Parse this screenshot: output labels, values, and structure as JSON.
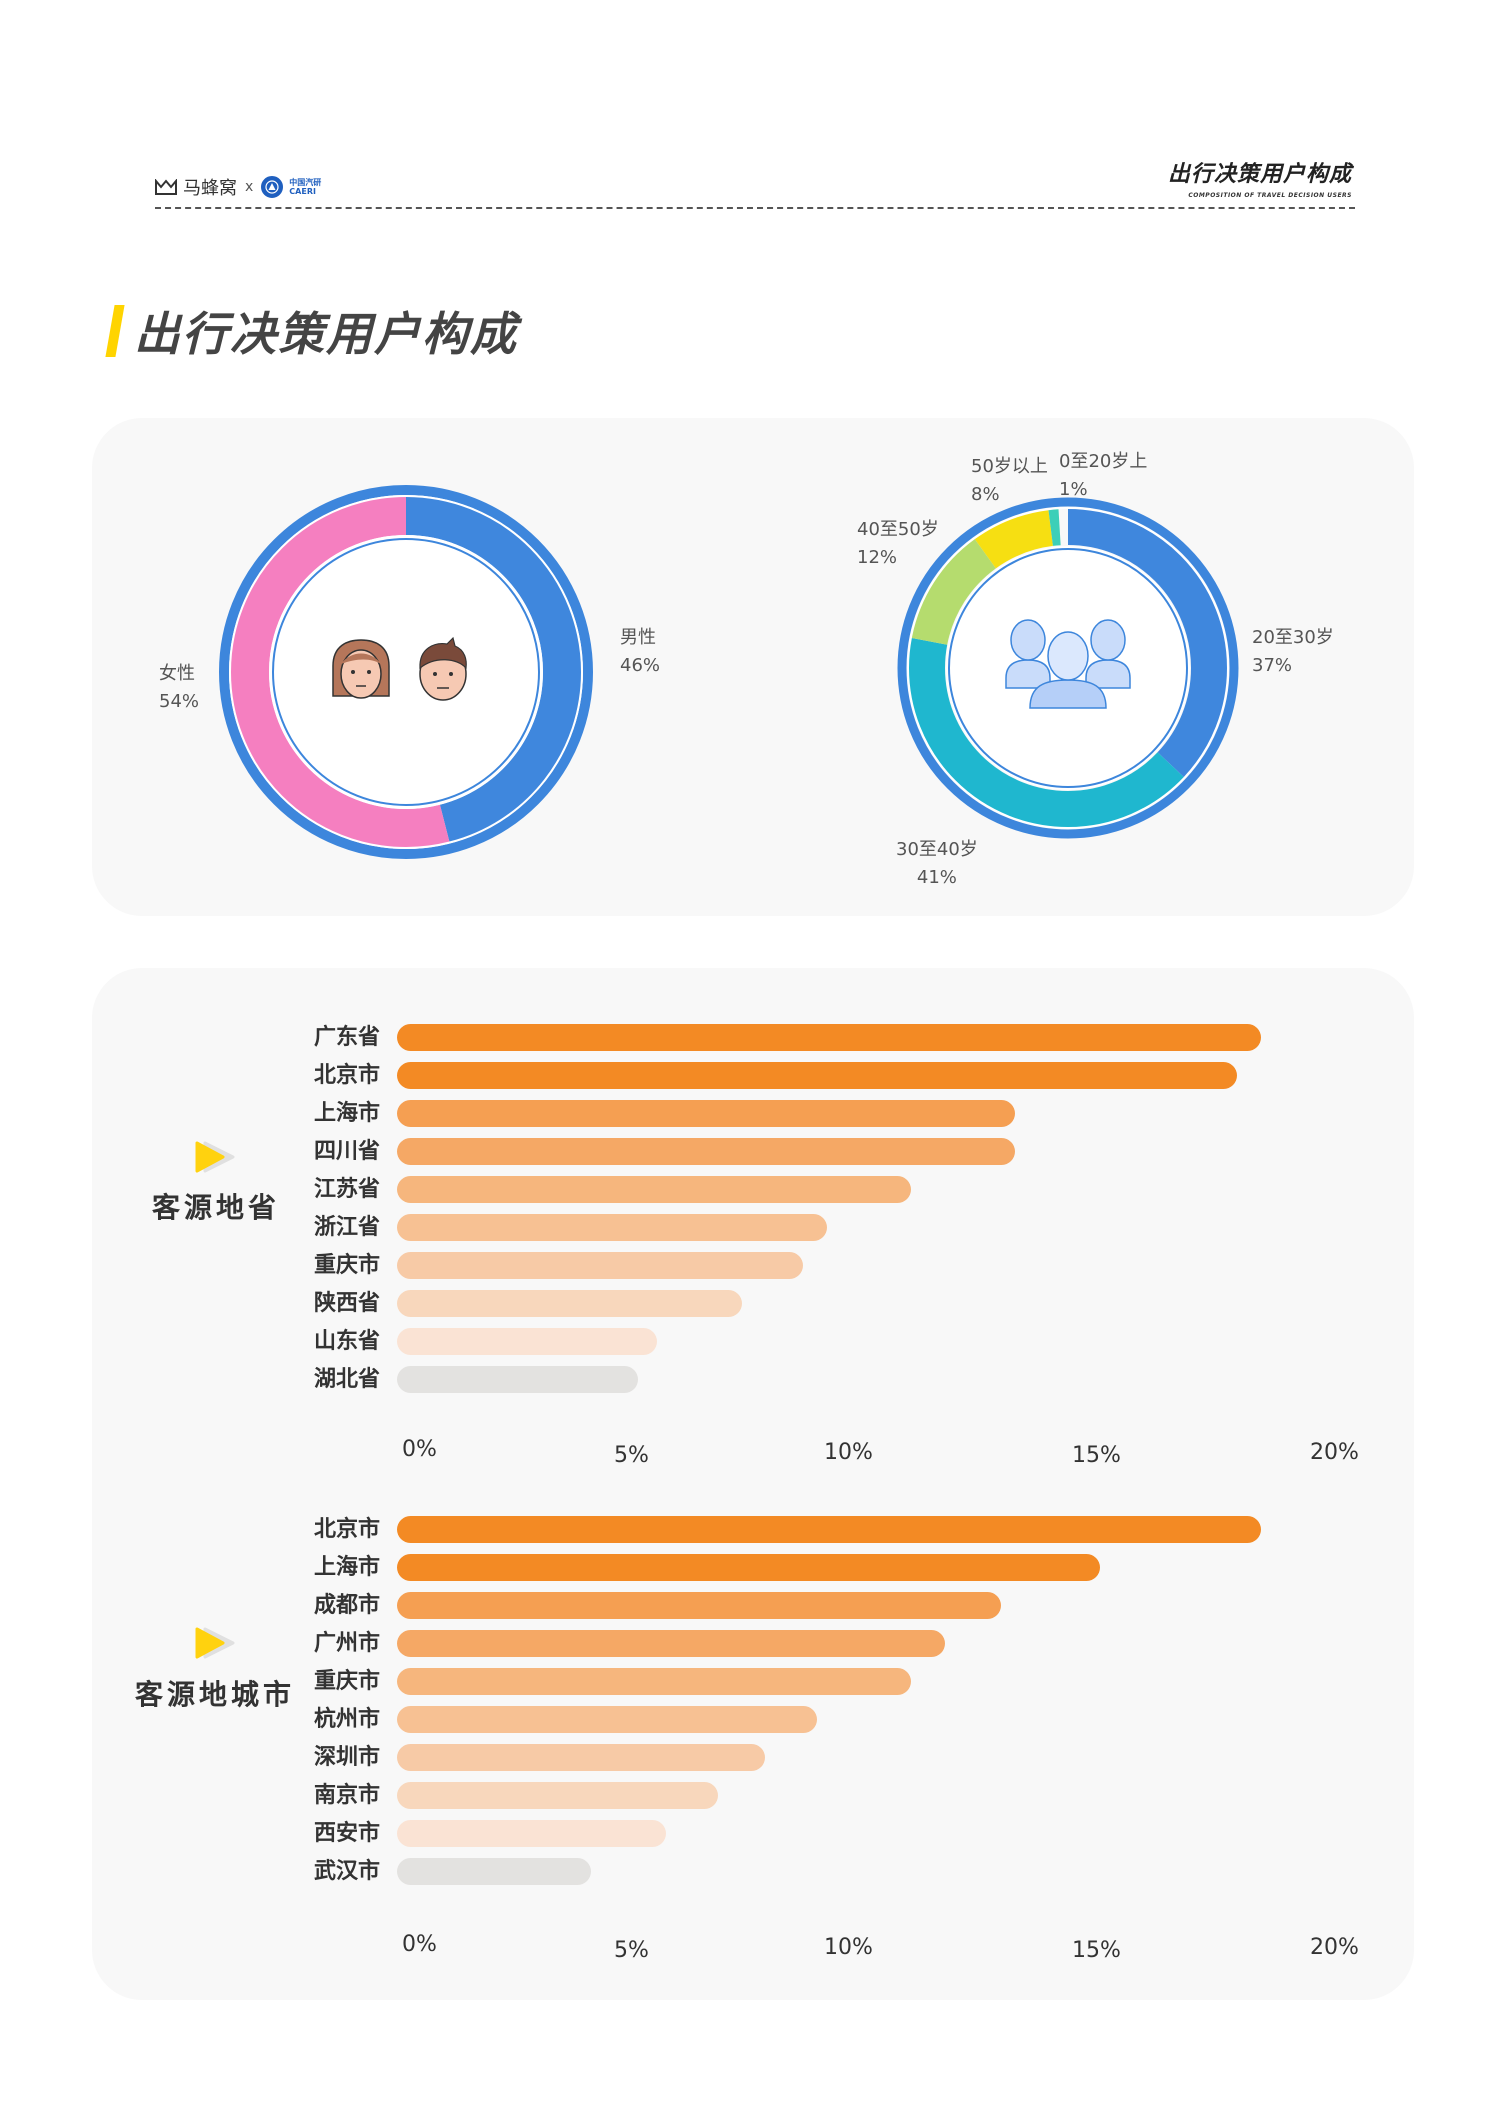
{
  "header": {
    "brand": "马蜂窝",
    "separator": "x",
    "partner_cn": "中国汽研",
    "partner_en": "CAERI",
    "section_title": "出行决策用户构成",
    "section_subtitle": "COMPOSITION OF TRAVEL DECISION USERS"
  },
  "page_title": "出行决策用户构成",
  "colors": {
    "accent_yellow": "#ffd400",
    "male_blue": "#3f87dd",
    "female_pink": "#f57fc0",
    "ring_blue": "#3d86dc",
    "bar_colors": [
      "#f38a24",
      "#f38a24",
      "#f59f52",
      "#f5a865",
      "#f6b67d",
      "#f7c193",
      "#f7caa6",
      "#f8d7bc",
      "#fae3d4",
      "#e3e2e0"
    ],
    "card_bg": "#f8f8f8"
  },
  "chart_data": [
    {
      "type": "pie",
      "title": "性别",
      "categories": [
        "男性",
        "女性"
      ],
      "values": [
        46,
        54
      ],
      "labels": [
        {
          "name": "男性",
          "value": "46%"
        },
        {
          "name": "女性",
          "value": "54%"
        }
      ],
      "colors": [
        "#3f87dd",
        "#f57fc0"
      ],
      "center_icon": "couple-faces-icon"
    },
    {
      "type": "pie",
      "title": "年龄",
      "categories": [
        "20至30岁",
        "30至40岁",
        "40至50岁",
        "50岁以上",
        "0至20岁上"
      ],
      "values": [
        37,
        41,
        12,
        8,
        1
      ],
      "labels": [
        {
          "name": "20至30岁",
          "value": "37%"
        },
        {
          "name": "30至40岁",
          "value": "41%"
        },
        {
          "name": "40至50岁",
          "value": "12%"
        },
        {
          "name": "50岁以上",
          "value": "8%"
        },
        {
          "name": "0至20岁上",
          "value": "1%"
        }
      ],
      "colors": [
        "#3f87dd",
        "#1fb7cf",
        "#b5dc6e",
        "#f6df12",
        "#3ccfb8"
      ],
      "center_icon": "people-group-icon"
    },
    {
      "type": "bar",
      "orientation": "horizontal",
      "title": "客源地省",
      "categories": [
        "广东省",
        "北京市",
        "上海市",
        "四川省",
        "江苏省",
        "浙江省",
        "重庆市",
        "陕西省",
        "山东省",
        "湖北省"
      ],
      "values": [
        18.3,
        17.8,
        13.1,
        13.1,
        10.9,
        9.1,
        8.6,
        7.3,
        5.5,
        5.1
      ],
      "xticks": [
        "0%",
        "5%",
        "10%",
        "15%",
        "20%"
      ],
      "xlim": [
        0,
        20
      ],
      "grid": false
    },
    {
      "type": "bar",
      "orientation": "horizontal",
      "title": "客源地城市",
      "categories": [
        "北京市",
        "上海市",
        "成都市",
        "广州市",
        "重庆市",
        "杭州市",
        "深圳市",
        "南京市",
        "西安市",
        "武汉市"
      ],
      "values": [
        18.3,
        14.9,
        12.8,
        11.6,
        10.9,
        8.9,
        7.8,
        6.8,
        5.7,
        4.1
      ],
      "xticks": [
        "0%",
        "5%",
        "10%",
        "15%",
        "20%"
      ],
      "xlim": [
        0,
        20
      ],
      "grid": false
    }
  ]
}
